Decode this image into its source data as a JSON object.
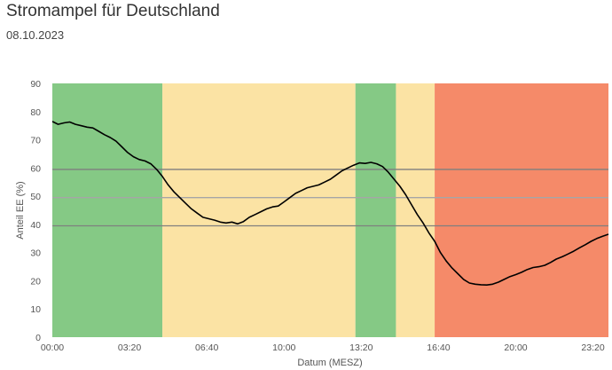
{
  "title": "Stromampel für Deutschland",
  "date": "08.10.2023",
  "chart_data": {
    "type": "line",
    "xlabel": "Datum (MESZ)",
    "ylabel": "Anteil EE (%)",
    "xlim": [
      0,
      24
    ],
    "ylim": [
      0,
      90
    ],
    "yticks": [
      0,
      10,
      20,
      30,
      40,
      50,
      60,
      70,
      80,
      90
    ],
    "xticks": [
      {
        "h": 0,
        "label": "00:00"
      },
      {
        "h": 3.333,
        "label": "03:20"
      },
      {
        "h": 6.667,
        "label": "06:40"
      },
      {
        "h": 10,
        "label": "10:00"
      },
      {
        "h": 13.333,
        "label": "13:20"
      },
      {
        "h": 16.667,
        "label": "16:40"
      },
      {
        "h": 20,
        "label": "20:00"
      },
      {
        "h": 23.333,
        "label": "23:20"
      }
    ],
    "bands": [
      {
        "start": 0,
        "end": 4.75,
        "level": "green",
        "color": "#85c985"
      },
      {
        "start": 4.75,
        "end": 13.08,
        "level": "yellow",
        "color": "#fbe3a4"
      },
      {
        "start": 13.08,
        "end": 14.83,
        "level": "green",
        "color": "#85c985"
      },
      {
        "start": 14.83,
        "end": 16.5,
        "level": "yellow",
        "color": "#fbe3a4"
      },
      {
        "start": 16.5,
        "end": 24,
        "level": "red",
        "color": "#f58a69"
      }
    ],
    "thresholds": [
      {
        "value": 59.5,
        "color": "#7f7f7f"
      },
      {
        "value": 49.5,
        "color": "#a6a6a6"
      },
      {
        "value": 39.5,
        "color": "#7f7f7f"
      }
    ],
    "series": [
      {
        "name": "Anteil EE",
        "color": "#000000",
        "x": [
          0,
          0.25,
          0.5,
          0.75,
          1.0,
          1.25,
          1.5,
          1.75,
          2.0,
          2.25,
          2.5,
          2.75,
          3.0,
          3.25,
          3.5,
          3.75,
          4.0,
          4.25,
          4.5,
          4.75,
          5.0,
          5.25,
          5.5,
          5.75,
          6.0,
          6.25,
          6.5,
          6.75,
          7.0,
          7.25,
          7.5,
          7.75,
          8.0,
          8.25,
          8.5,
          8.75,
          9.0,
          9.25,
          9.5,
          9.75,
          10.0,
          10.25,
          10.5,
          10.75,
          11.0,
          11.25,
          11.5,
          11.75,
          12.0,
          12.25,
          12.5,
          12.75,
          13.0,
          13.25,
          13.5,
          13.75,
          14.0,
          14.25,
          14.5,
          14.75,
          15.0,
          15.25,
          15.5,
          15.75,
          16.0,
          16.25,
          16.5,
          16.75,
          17.0,
          17.25,
          17.5,
          17.75,
          18.0,
          18.25,
          18.5,
          18.75,
          19.0,
          19.25,
          19.5,
          19.75,
          20.0,
          20.25,
          20.5,
          20.75,
          21.0,
          21.25,
          21.5,
          21.75,
          22.0,
          22.25,
          22.5,
          22.75,
          23.0,
          23.25,
          23.5,
          23.75,
          24.0
        ],
        "y": [
          76.5,
          75.5,
          76.0,
          76.3,
          75.5,
          75.0,
          74.5,
          74.2,
          73.0,
          71.8,
          70.8,
          69.5,
          67.5,
          65.5,
          64.0,
          63.0,
          62.5,
          61.5,
          59.5,
          57.0,
          54.0,
          51.5,
          49.5,
          47.5,
          45.5,
          44.0,
          42.5,
          42.0,
          41.5,
          40.8,
          40.5,
          40.8,
          40.2,
          41.0,
          42.5,
          43.5,
          44.5,
          45.5,
          46.2,
          46.5,
          48.0,
          49.5,
          51.0,
          52.0,
          53.0,
          53.5,
          54.0,
          55.0,
          56.0,
          57.5,
          59.0,
          60.0,
          61.0,
          61.8,
          61.6,
          62.0,
          61.5,
          60.5,
          58.5,
          56.0,
          53.5,
          50.5,
          47.0,
          43.5,
          40.5,
          37.0,
          34.0,
          30.0,
          27.0,
          24.5,
          22.5,
          20.5,
          19.2,
          18.8,
          18.6,
          18.5,
          18.8,
          19.5,
          20.5,
          21.5,
          22.2,
          23.0,
          24.0,
          24.7,
          25.0,
          25.5,
          26.5,
          27.7,
          28.5,
          29.5,
          30.5,
          31.7,
          32.8,
          34.0,
          35.0,
          35.8,
          36.5
        ]
      }
    ]
  }
}
